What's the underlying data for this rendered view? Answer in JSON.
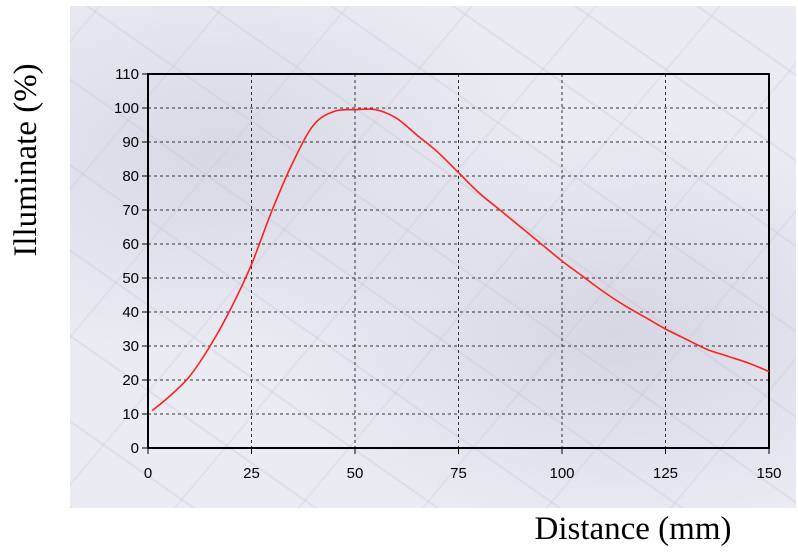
{
  "chart_data": {
    "type": "line",
    "xlabel": "Distance (mm)",
    "ylabel": "Illuminate (%)",
    "xlim": [
      0,
      150
    ],
    "ylim": [
      0,
      110
    ],
    "xticks": [
      0,
      25,
      50,
      75,
      100,
      125,
      150
    ],
    "yticks": [
      0,
      10,
      20,
      30,
      40,
      50,
      60,
      70,
      80,
      90,
      100,
      110
    ],
    "grid": true,
    "series": [
      {
        "color": "#ff2020",
        "x": [
          1,
          5,
          10,
          15,
          20,
          25,
          30,
          35,
          40,
          45,
          50,
          55,
          60,
          65,
          70,
          75,
          80,
          85,
          90,
          95,
          100,
          105,
          110,
          115,
          120,
          125,
          130,
          135,
          140,
          145,
          150
        ],
        "y": [
          11,
          15,
          21,
          30,
          41,
          54,
          70,
          84,
          95,
          99,
          99.5,
          99.5,
          97,
          92,
          87,
          81,
          75,
          70,
          65,
          60,
          55,
          50.5,
          46,
          42,
          38.5,
          35,
          32,
          29,
          27,
          25,
          22.5
        ]
      }
    ]
  }
}
